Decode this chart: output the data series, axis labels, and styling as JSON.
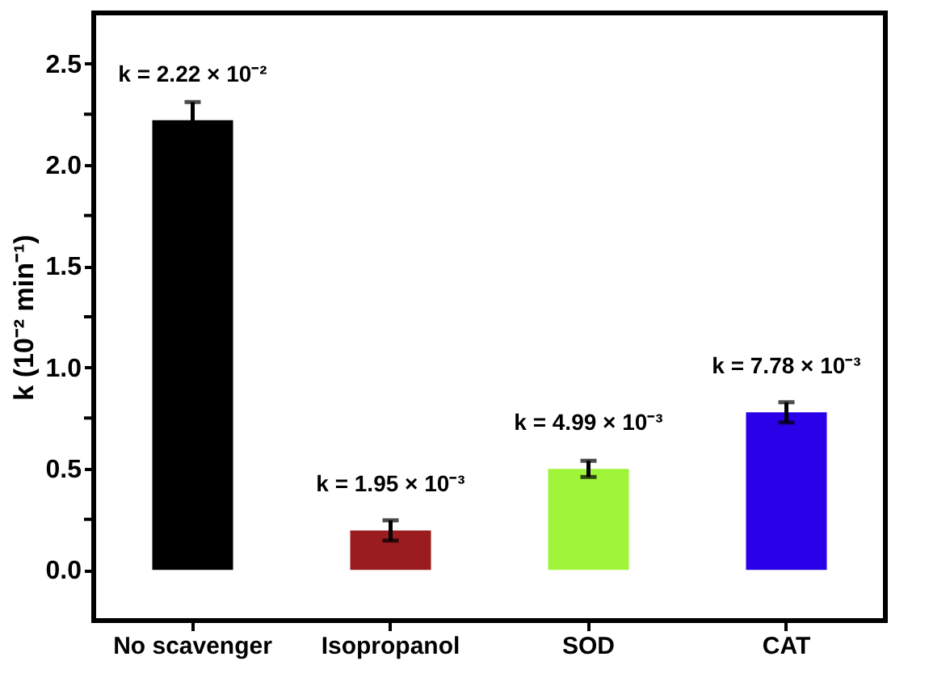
{
  "chart_data": {
    "type": "bar",
    "ylabel": "k (10⁻² min⁻¹)",
    "categories": [
      "No scavenger",
      "Isopropanol",
      "SOD",
      "CAT"
    ],
    "values": [
      2.22,
      0.195,
      0.499,
      0.778
    ],
    "colors": [
      "#000000",
      "#9b1c1f",
      "#a0f53a",
      "#2a00e8"
    ],
    "errors": [
      0.09,
      0.05,
      0.04,
      0.05
    ],
    "annotations": [
      {
        "text": "k = 2.22 × 10⁻²",
        "x": "No scavenger",
        "y": 2.22
      },
      {
        "text": "k = 1.95 × 10⁻³",
        "x": "Isopropanol",
        "y": 0.195
      },
      {
        "text": "k = 4.99 × 10⁻³",
        "x": "SOD",
        "y": 0.499
      },
      {
        "text": "k = 7.78 × 10⁻³",
        "x": "CAT",
        "y": 0.778
      }
    ],
    "ylim": [
      -0.25,
      2.75
    ],
    "yticks": [
      {
        "value": 0,
        "label": "0.0"
      },
      {
        "value": 0.25,
        "label": null
      },
      0.5,
      {
        "value": 0.75,
        "label": null
      },
      {
        "value": 1,
        "label": "1.0"
      },
      {
        "value": 1.25,
        "label": null
      },
      1.5,
      {
        "value": 1.75,
        "label": null
      },
      {
        "value": 2,
        "label": "2.0"
      },
      {
        "value": 2.25,
        "label": null
      },
      2.5
    ],
    "grid": false
  }
}
